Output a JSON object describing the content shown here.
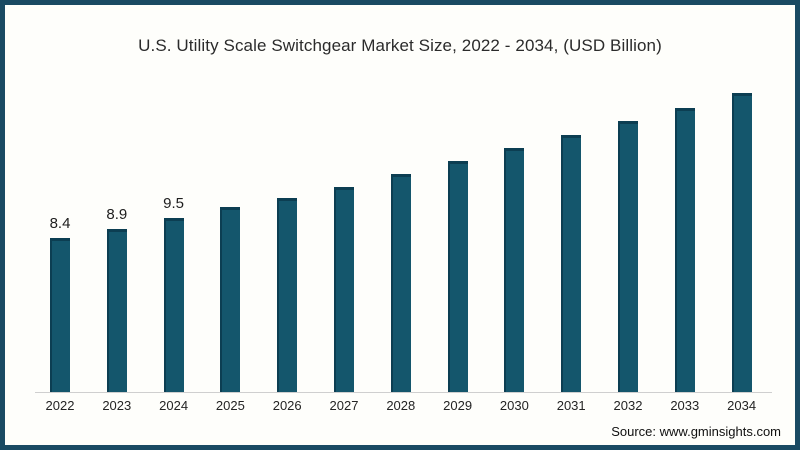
{
  "title": "U.S. Utility Scale Switchgear Market Size, 2022 - 2034, (USD Billion)",
  "source_note": "Source: www.gminsights.com",
  "colors": {
    "bar_fill": "#14566c",
    "bar_shade": "#0c3e52",
    "frame_border": "#1a4a63",
    "axis_line": "#cfcfcf",
    "background": "#fefefb"
  },
  "chart_data": {
    "type": "bar",
    "title": "U.S. Utility Scale Switchgear Market Size, 2022 - 2034, (USD Billion)",
    "categories": [
      "2022",
      "2023",
      "2024",
      "2025",
      "2026",
      "2027",
      "2028",
      "2029",
      "2030",
      "2031",
      "2032",
      "2033",
      "2034"
    ],
    "values": [
      8.4,
      8.9,
      9.5,
      10.1,
      10.6,
      11.2,
      11.9,
      12.6,
      13.3,
      14.0,
      14.8,
      15.5,
      16.3
    ],
    "data_labels": [
      "8.4",
      "8.9",
      "9.5",
      "",
      "",
      "",
      "",
      "",
      "",
      "",
      "",
      "",
      ""
    ],
    "xlabel": "",
    "ylabel": "",
    "ylim": [
      0,
      17
    ],
    "grid": false,
    "legend": false,
    "y_axis_visible": false
  }
}
